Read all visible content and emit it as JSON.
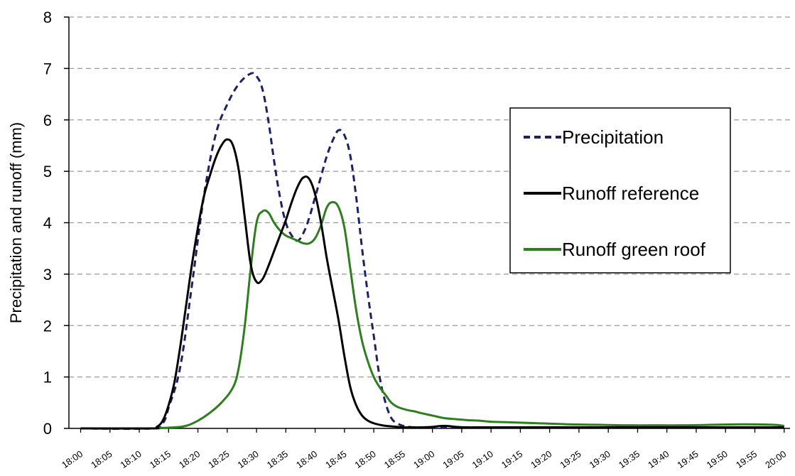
{
  "chart_data": {
    "type": "line",
    "title": "",
    "xlabel": "",
    "ylabel": "Precipitation and runoff (mm)",
    "ylim": [
      0,
      8
    ],
    "yticks": [
      0,
      1,
      2,
      3,
      4,
      5,
      6,
      7,
      8
    ],
    "grid": "horizontal dashed",
    "legend_position": "right",
    "xticks": [
      "18:00",
      "18:05",
      "18:10",
      "18:15",
      "18:20",
      "18:25",
      "18:30",
      "18:35",
      "18:40",
      "18:45",
      "18:50",
      "18:55",
      "19:00",
      "19:05",
      "19:10",
      "19:15",
      "19:20",
      "19:25",
      "19:30",
      "19:35",
      "19:40",
      "19:45",
      "19:50",
      "19:55",
      "20:00"
    ],
    "series": [
      {
        "name": "Precipitation",
        "color": "#1f1f66",
        "style": "dashed",
        "x": [
          2,
          14,
          16,
          17,
          19,
          21,
          23,
          25,
          27,
          29,
          31,
          32,
          33,
          34,
          35,
          36,
          37,
          38,
          39,
          40,
          41,
          42,
          43,
          44,
          45,
          46,
          47,
          48,
          49,
          50,
          51,
          52,
          53,
          54,
          55,
          56,
          57,
          58,
          59,
          60,
          62,
          64,
          66,
          70,
          75,
          80,
          85,
          90,
          95,
          100,
          105,
          110,
          115,
          120,
          122
        ],
        "y": [
          0,
          0,
          0.1,
          0.4,
          1.2,
          2.8,
          4.5,
          5.7,
          6.3,
          6.7,
          6.9,
          6.85,
          6.6,
          6.0,
          5.2,
          4.5,
          4.0,
          3.75,
          3.65,
          3.8,
          4.1,
          4.5,
          4.9,
          5.3,
          5.6,
          5.8,
          5.7,
          5.3,
          4.5,
          3.5,
          2.6,
          1.8,
          1.0,
          0.5,
          0.2,
          0.1,
          0.05,
          0.03,
          0.02,
          0.02,
          0.02,
          0.02,
          0.02,
          0.02,
          0.02,
          0.02,
          0.02,
          0.02,
          0.02,
          0.02,
          0.02,
          0.02,
          0.02,
          0.02,
          0.02
        ]
      },
      {
        "name": "Runoff reference",
        "color": "#000000",
        "style": "solid",
        "x": [
          2,
          14,
          15,
          16,
          17,
          18,
          19,
          20,
          21,
          22,
          23,
          24,
          25,
          26,
          27,
          28,
          29,
          30,
          31,
          32,
          33,
          34,
          35,
          36,
          37,
          38,
          39,
          40,
          41,
          42,
          43,
          44,
          45,
          46,
          47,
          48,
          49,
          50,
          51,
          52,
          53,
          54,
          55,
          56,
          57,
          58,
          59,
          60,
          62,
          64,
          66,
          68,
          70,
          72,
          75,
          80,
          85,
          90,
          95,
          100,
          105,
          110,
          115,
          120,
          122
        ],
        "y": [
          0,
          0,
          0.03,
          0.15,
          0.45,
          0.9,
          1.6,
          2.4,
          3.2,
          3.9,
          4.5,
          4.9,
          5.25,
          5.5,
          5.62,
          5.5,
          5.0,
          4.1,
          3.2,
          2.85,
          2.9,
          3.15,
          3.45,
          3.75,
          4.05,
          4.4,
          4.7,
          4.88,
          4.85,
          4.55,
          4.0,
          3.3,
          2.7,
          2.1,
          1.4,
          0.8,
          0.45,
          0.25,
          0.15,
          0.1,
          0.07,
          0.05,
          0.04,
          0.03,
          0.02,
          0.02,
          0.02,
          0.02,
          0.03,
          0.05,
          0.03,
          0.02,
          0.02,
          0.02,
          0.02,
          0.02,
          0.02,
          0.02,
          0.02,
          0.02,
          0.02,
          0.02,
          0.02,
          0.02,
          0.02
        ]
      },
      {
        "name": "Runoff green roof",
        "color": "#2e7d1e",
        "style": "solid",
        "x": [
          2,
          14,
          16,
          18,
          20,
          22,
          24,
          26,
          28,
          29,
          30,
          31,
          32,
          33,
          34,
          35,
          36,
          37,
          38,
          39,
          40,
          41,
          42,
          43,
          44,
          45,
          46,
          47,
          48,
          49,
          50,
          51,
          52,
          53,
          54,
          55,
          56,
          57,
          58,
          59,
          60,
          62,
          64,
          66,
          68,
          70,
          72,
          75,
          80,
          85,
          90,
          95,
          100,
          105,
          110,
          115,
          120,
          122
        ],
        "y": [
          0,
          0,
          0.01,
          0.02,
          0.05,
          0.15,
          0.3,
          0.5,
          0.8,
          1.2,
          2.0,
          3.1,
          4.0,
          4.22,
          4.2,
          4.0,
          3.85,
          3.75,
          3.7,
          3.65,
          3.6,
          3.6,
          3.7,
          3.95,
          4.3,
          4.4,
          4.3,
          3.9,
          3.1,
          2.3,
          1.7,
          1.3,
          1.0,
          0.8,
          0.65,
          0.5,
          0.42,
          0.38,
          0.35,
          0.33,
          0.3,
          0.25,
          0.2,
          0.18,
          0.16,
          0.15,
          0.13,
          0.12,
          0.1,
          0.08,
          0.07,
          0.06,
          0.06,
          0.06,
          0.07,
          0.08,
          0.07,
          0.05
        ]
      }
    ]
  }
}
